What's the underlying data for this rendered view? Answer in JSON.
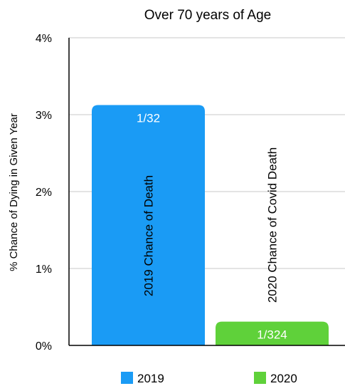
{
  "chart_data": {
    "type": "bar",
    "title": "Over 70 years of Age",
    "ylabel": "% Chance of Dying in Given Year",
    "xlabel": "",
    "ylim": [
      0,
      4
    ],
    "yticks": [
      {
        "value": 0,
        "label": "0%"
      },
      {
        "value": 1,
        "label": "1%"
      },
      {
        "value": 2,
        "label": "2%"
      },
      {
        "value": 3,
        "label": "3%"
      },
      {
        "value": 4,
        "label": "4%"
      }
    ],
    "grid": true,
    "legend_position": "bottom",
    "bars": [
      {
        "series": "2019",
        "value": 3.125,
        "value_label": "1/32",
        "annotation": "2019 Chance of Death",
        "color": "#1a9bf5"
      },
      {
        "series": "2020",
        "value": 0.309,
        "value_label": "1/324",
        "annotation": "2020 Chance of Covid Death",
        "color": "#5fd13a"
      }
    ],
    "legend": [
      {
        "name": "2019",
        "color": "#1a9bf5"
      },
      {
        "name": "2020",
        "color": "#5fd13a"
      }
    ]
  }
}
